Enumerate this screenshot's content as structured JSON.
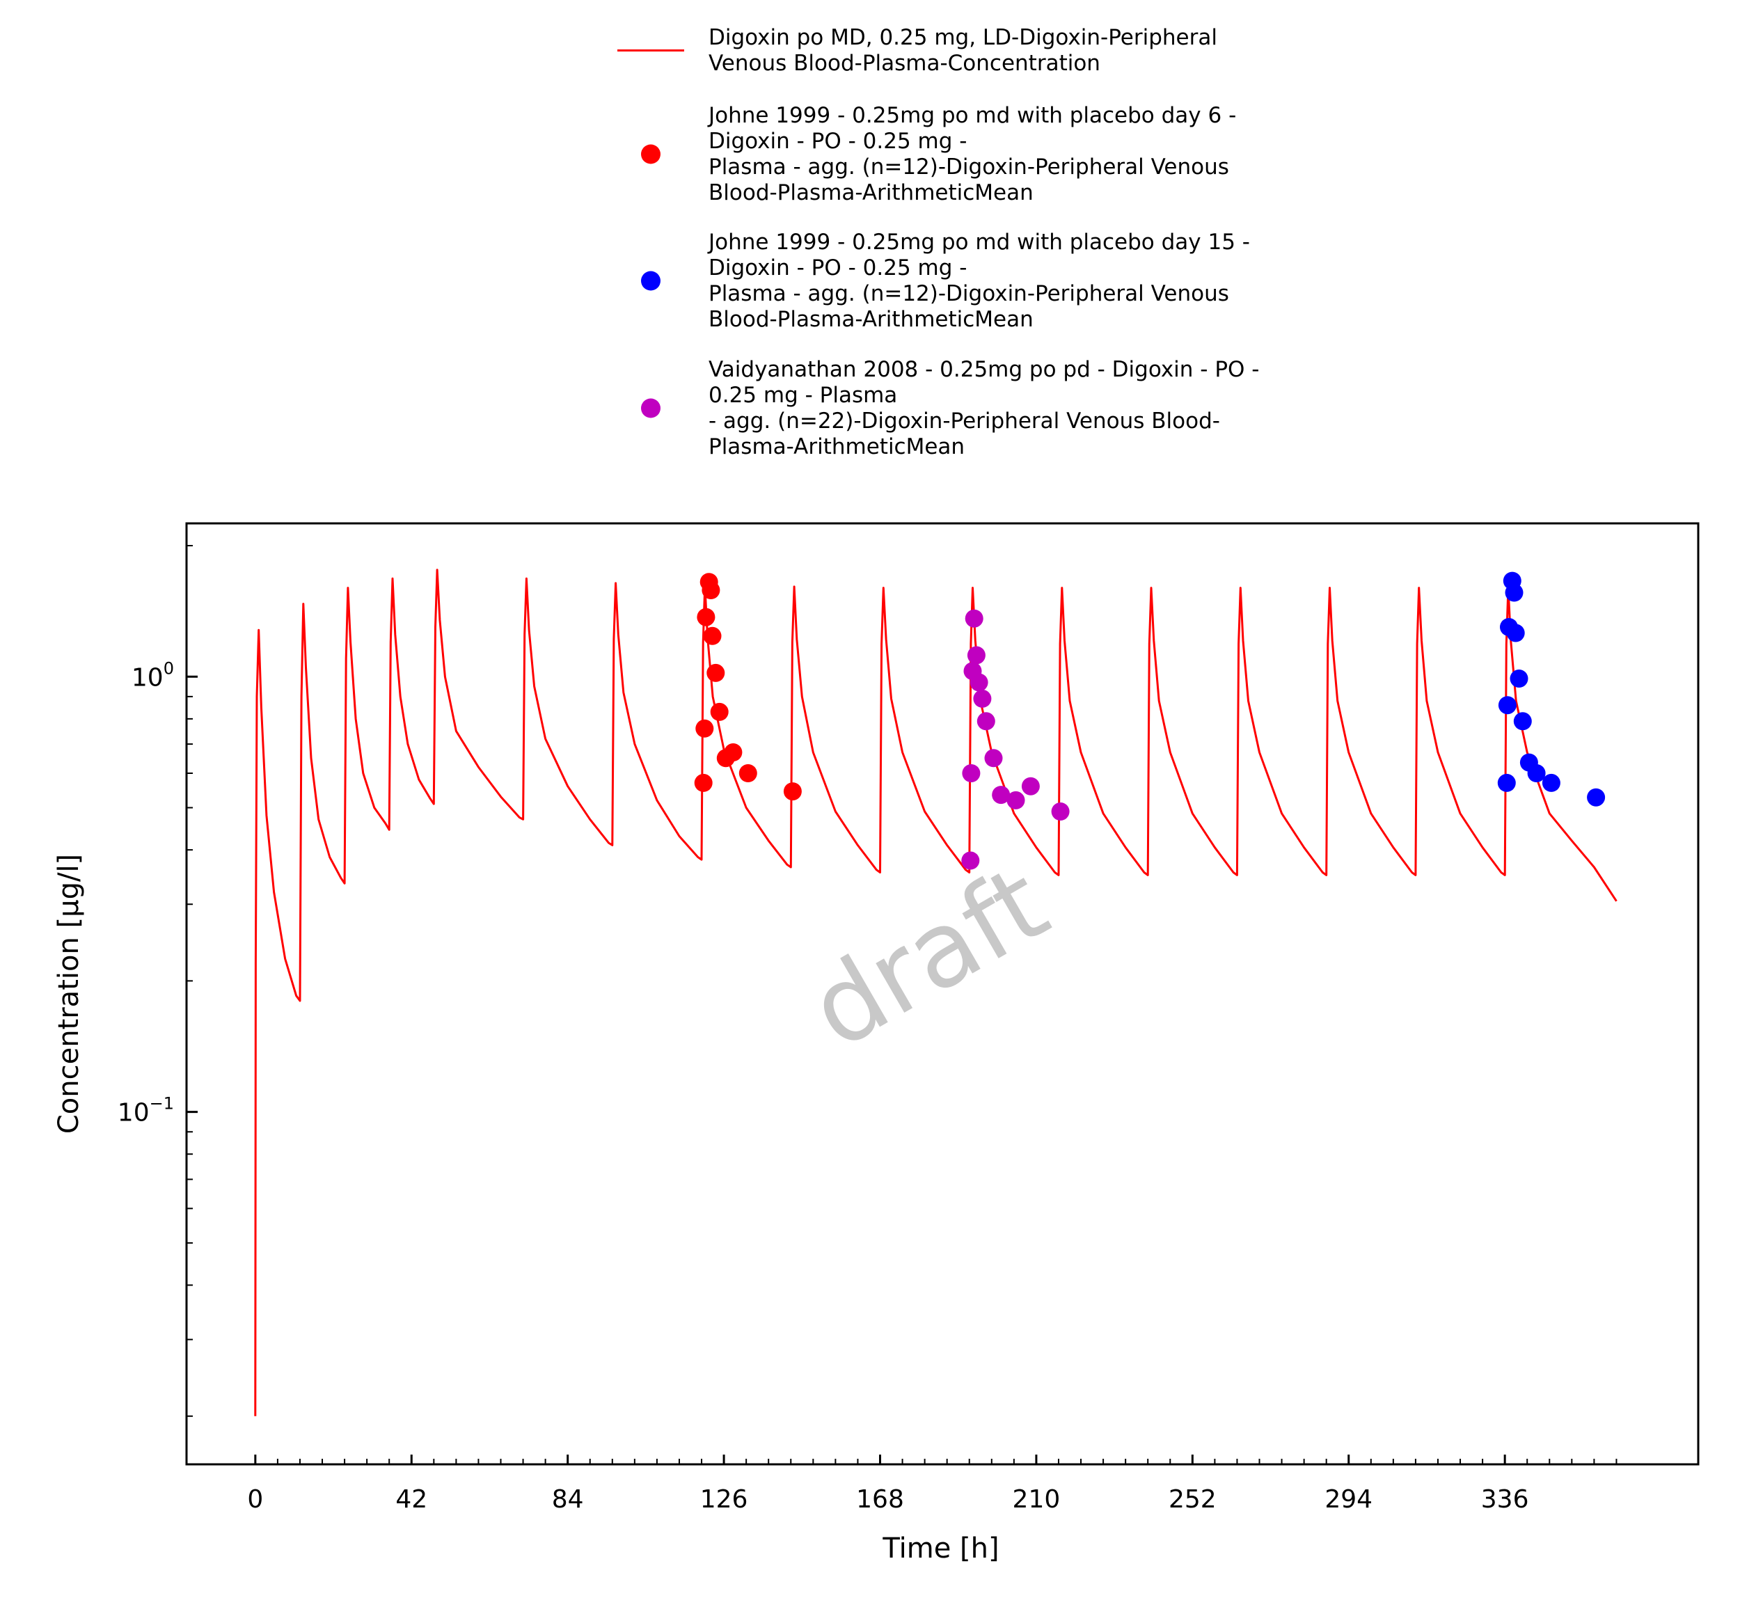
{
  "chart_data": {
    "type": "line",
    "xlabel": "Time [h]",
    "ylabel": "Concentration [µg/l]",
    "yscale": "log",
    "xlim": [
      -18.5,
      388
    ],
    "ylim": [
      0.0155,
      2.25
    ],
    "xticks": [
      0,
      42,
      84,
      126,
      168,
      210,
      252,
      294,
      336
    ],
    "xtick_labels": [
      "0",
      "42",
      "84",
      "126",
      "168",
      "210",
      "252",
      "294",
      "336"
    ],
    "yticks": [
      {
        "base": "10",
        "exp": "0",
        "value": 1.0
      },
      {
        "base": "10",
        "exp": "−1",
        "value": 0.1
      }
    ],
    "grid": false,
    "legend_position": "top-center",
    "watermark": "draft",
    "series": [
      {
        "name": "Digoxin po MD, 0.25 mg, LD-Digoxin-Peripheral Venous Blood-Plasma-Concentration",
        "kind": "line",
        "color": "#ff0000",
        "dose_times": [
          0,
          12,
          24,
          36,
          48,
          72,
          96,
          120,
          144,
          168,
          192,
          216,
          240,
          264,
          288,
          312,
          336
        ],
        "peaks": [
          1.28,
          1.47,
          1.6,
          1.68,
          1.76,
          1.68,
          1.64,
          1.62,
          1.61,
          1.6,
          1.6,
          1.6,
          1.6,
          1.6,
          1.6,
          1.6,
          1.6
        ],
        "troughs": [
          0.18,
          0.335,
          0.445,
          0.51,
          0.47,
          0.41,
          0.38,
          0.365,
          0.355,
          0.355,
          0.35,
          0.35,
          0.35,
          0.35,
          0.35,
          0.35,
          0.305
        ],
        "x": [
          0,
          0.1,
          0.4,
          0.9,
          1.6,
          3,
          5,
          8,
          11,
          12,
          12.4,
          12.9,
          13.6,
          15,
          17,
          20,
          23,
          24,
          24.4,
          24.9,
          25.6,
          27,
          29,
          32,
          35,
          36,
          36.4,
          36.9,
          37.6,
          39,
          41,
          44,
          47,
          48,
          48.4,
          48.9,
          49.6,
          51,
          54,
          60,
          66,
          71,
          72,
          72.4,
          72.9,
          73.6,
          75,
          78,
          84,
          90,
          95,
          96,
          96.4,
          96.9,
          97.6,
          99,
          102,
          108,
          114,
          119,
          120,
          120.4,
          120.9,
          121.6,
          123,
          126,
          132,
          138,
          143,
          144,
          144.4,
          144.9,
          145.6,
          147,
          150,
          156,
          162,
          167,
          168,
          168.4,
          168.9,
          169.6,
          171,
          174,
          180,
          186,
          191,
          192,
          192.4,
          192.9,
          193.6,
          195,
          198,
          204,
          210,
          215,
          216,
          216.4,
          216.9,
          217.6,
          219,
          222,
          228,
          234,
          239,
          240,
          240.4,
          240.9,
          241.6,
          243,
          246,
          252,
          258,
          263,
          264,
          264.4,
          264.9,
          265.6,
          267,
          270,
          276,
          282,
          287,
          288,
          288.4,
          288.9,
          289.6,
          291,
          294,
          300,
          306,
          311,
          312,
          312.4,
          312.9,
          313.6,
          315,
          318,
          324,
          330,
          335,
          336,
          336.4,
          336.9,
          337.6,
          339,
          342,
          348,
          354,
          360,
          366
        ],
        "y": [
          0.02,
          0.22,
          0.9,
          1.28,
          0.85,
          0.48,
          0.32,
          0.225,
          0.185,
          0.18,
          0.9,
          1.47,
          1.05,
          0.65,
          0.47,
          0.385,
          0.345,
          0.335,
          1.1,
          1.6,
          1.2,
          0.8,
          0.6,
          0.5,
          0.46,
          0.445,
          1.2,
          1.68,
          1.25,
          0.9,
          0.7,
          0.58,
          0.525,
          0.51,
          1.3,
          1.76,
          1.35,
          1.0,
          0.75,
          0.62,
          0.53,
          0.475,
          0.47,
          1.25,
          1.68,
          1.28,
          0.95,
          0.72,
          0.56,
          0.47,
          0.415,
          0.41,
          1.22,
          1.64,
          1.25,
          0.92,
          0.7,
          0.52,
          0.43,
          0.385,
          0.38,
          1.2,
          1.62,
          1.23,
          0.9,
          0.68,
          0.5,
          0.42,
          0.37,
          0.365,
          1.2,
          1.61,
          1.22,
          0.9,
          0.67,
          0.49,
          0.41,
          0.36,
          0.355,
          1.19,
          1.6,
          1.22,
          0.89,
          0.67,
          0.49,
          0.41,
          0.36,
          0.355,
          1.19,
          1.6,
          1.21,
          0.88,
          0.67,
          0.485,
          0.405,
          0.355,
          0.35,
          1.19,
          1.6,
          1.21,
          0.88,
          0.67,
          0.485,
          0.405,
          0.355,
          0.35,
          1.19,
          1.6,
          1.21,
          0.88,
          0.67,
          0.485,
          0.405,
          0.355,
          0.35,
          1.19,
          1.6,
          1.21,
          0.88,
          0.67,
          0.485,
          0.405,
          0.355,
          0.35,
          1.19,
          1.6,
          1.21,
          0.88,
          0.67,
          0.485,
          0.405,
          0.355,
          0.35,
          1.19,
          1.6,
          1.21,
          0.88,
          0.67,
          0.485,
          0.405,
          0.355,
          0.35,
          1.19,
          1.6,
          1.21,
          0.88,
          0.67,
          0.485,
          0.42,
          0.365,
          0.305
        ]
      },
      {
        "name": "Johne 1999 - 0.25mg po md with placebo day 6 - Digoxin - PO - 0.25 mg - Plasma - agg. (n=12)-Digoxin-Peripheral Venous Blood-Plasma-ArithmeticMean",
        "kind": "scatter",
        "color": "#ff0000",
        "x": [
          120.5,
          120.8,
          121.2,
          122,
          122.5,
          122.9,
          123.8,
          124.8,
          126.5,
          128.5,
          132.5,
          144.5
        ],
        "y": [
          0.57,
          0.76,
          1.37,
          1.65,
          1.58,
          1.24,
          1.02,
          0.83,
          0.65,
          0.67,
          0.6,
          0.545
        ]
      },
      {
        "name": "Johne 1999 - 0.25mg po md with placebo day 15 - Digoxin - PO - 0.25 mg - Plasma - agg. (n=12)-Digoxin-Peripheral Venous Blood-Plasma-ArithmeticMean",
        "kind": "scatter",
        "color": "#0000ff",
        "x": [
          336.5,
          336.7,
          337.1,
          338,
          338.5,
          338.9,
          339.8,
          340.8,
          342.5,
          344.5,
          348.5,
          360.5
        ],
        "y": [
          0.57,
          0.86,
          1.3,
          1.66,
          1.56,
          1.26,
          0.99,
          0.79,
          0.635,
          0.6,
          0.57,
          0.528
        ]
      },
      {
        "name": "Vaidyanathan 2008 - 0.25mg po pd - Digoxin - PO - 0.25 mg - Plasma - agg. (n=22)-Digoxin-Peripheral Venous Blood-Plasma-ArithmeticMean",
        "kind": "scatter",
        "color": "#c000c0",
        "x": [
          192.3,
          192.5,
          192.9,
          193.3,
          193.9,
          194.6,
          195.5,
          196.5,
          198.5,
          200.5,
          204.5,
          208.5,
          216.5
        ],
        "y": [
          0.378,
          0.6,
          1.03,
          1.36,
          1.12,
          0.97,
          0.89,
          0.79,
          0.65,
          0.535,
          0.52,
          0.56,
          0.49
        ]
      }
    ],
    "legend": [
      {
        "marker": "line",
        "color": "#ff0000",
        "lines": [
          "Digoxin po MD, 0.25 mg, LD-Digoxin-Peripheral",
          "Venous Blood-Plasma-Concentration"
        ]
      },
      {
        "marker": "dot",
        "color": "#ff0000",
        "lines": [
          "Johne 1999 - 0.25mg po md with placebo day 6 -",
          "Digoxin - PO - 0.25 mg -",
          "Plasma - agg. (n=12)-Digoxin-Peripheral Venous",
          "Blood-Plasma-ArithmeticMean"
        ]
      },
      {
        "marker": "dot",
        "color": "#0000ff",
        "lines": [
          "Johne 1999 - 0.25mg po md with placebo day 15 -",
          "Digoxin - PO - 0.25 mg -",
          "Plasma - agg. (n=12)-Digoxin-Peripheral Venous",
          "Blood-Plasma-ArithmeticMean"
        ]
      },
      {
        "marker": "dot",
        "color": "#c000c0",
        "lines": [
          "Vaidyanathan 2008 - 0.25mg po pd - Digoxin - PO -",
          "0.25 mg - Plasma",
          "- agg. (n=22)-Digoxin-Peripheral Venous Blood-",
          "Plasma-ArithmeticMean"
        ]
      }
    ]
  }
}
